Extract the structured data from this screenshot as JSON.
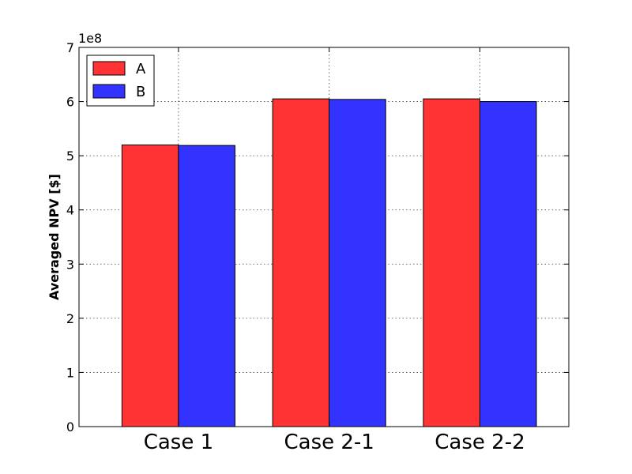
{
  "chart_data": {
    "type": "bar",
    "categories": [
      "Case 1",
      "Case 2-1",
      "Case 2-2"
    ],
    "series": [
      {
        "name": "A",
        "values": [
          520000000,
          605000000,
          605000000
        ],
        "color": "#ff3333"
      },
      {
        "name": "B",
        "values": [
          519000000,
          604000000,
          600000000
        ],
        "color": "#3333ff"
      }
    ],
    "ylabel": "Averaged NPV [$]",
    "xlabel": "",
    "title": "",
    "ylim": [
      0,
      700000000
    ],
    "yticks": [
      "0",
      "1",
      "2",
      "3",
      "4",
      "5",
      "6",
      "7"
    ],
    "offset_label": "1e8",
    "grid": true,
    "legend_position": "top-left"
  }
}
